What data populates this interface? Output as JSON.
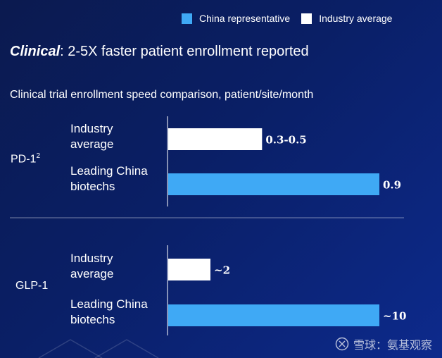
{
  "legend": {
    "items": [
      {
        "label": "China representative",
        "color": "#3fa9f5"
      },
      {
        "label": "Industry average",
        "color": "#ffffff"
      }
    ]
  },
  "heading": {
    "emphasis": "Clinical",
    "rest": ": 2-5X faster patient enrollment reported"
  },
  "subheading": "Clinical trial enrollment speed comparison, patient/site/month",
  "watermark": {
    "text": "雪球：氨基观察"
  },
  "chart_data": [
    {
      "type": "bar",
      "orientation": "horizontal",
      "group": "PD-1",
      "group_superscript": "2",
      "categories": [
        "Industry average",
        "Leading China biotechs"
      ],
      "category_lines": [
        [
          "Industry",
          "average"
        ],
        [
          "Leading China",
          "biotechs"
        ]
      ],
      "values": [
        0.4,
        0.9
      ],
      "data_labels": [
        "0.3-0.5",
        "0.9"
      ],
      "colors": [
        "#ffffff",
        "#3fa9f5"
      ],
      "xlim": [
        0,
        0.9
      ]
    },
    {
      "type": "bar",
      "orientation": "horizontal",
      "group": "GLP-1",
      "group_superscript": "",
      "categories": [
        "Industry average",
        "Leading China biotechs"
      ],
      "category_lines": [
        [
          "Industry",
          "average"
        ],
        [
          "Leading China",
          "biotechs"
        ]
      ],
      "values": [
        2,
        10
      ],
      "data_labels": [
        "~2",
        "~10"
      ],
      "colors": [
        "#ffffff",
        "#3fa9f5"
      ],
      "xlim": [
        0,
        10
      ]
    }
  ]
}
